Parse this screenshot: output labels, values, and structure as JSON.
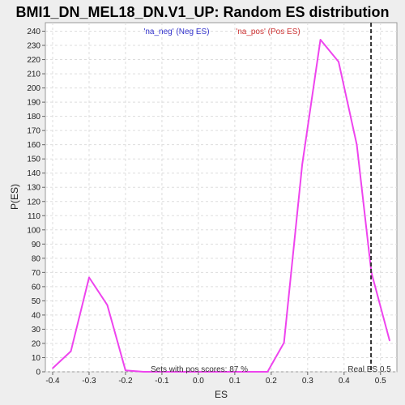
{
  "chart_data": {
    "type": "line",
    "title": "BMI1_DN_MEL18_DN.V1_UP: Random ES distribution",
    "xlabel": "ES",
    "ylabel": "P(ES)",
    "xlim": [
      -0.42,
      0.545
    ],
    "ylim": [
      0,
      246
    ],
    "xticks": [
      -0.4,
      -0.3,
      -0.2,
      -0.1,
      0.0,
      0.1,
      0.2,
      0.3,
      0.4,
      0.5
    ],
    "xtick_labels": [
      "-0.4",
      "-0.3",
      "-0.2",
      "-0.1",
      "0.0",
      "0.1",
      "0.2",
      "0.3",
      "0.4",
      "0.5"
    ],
    "yticks": [
      0,
      10,
      20,
      30,
      40,
      50,
      60,
      70,
      80,
      90,
      100,
      110,
      120,
      130,
      140,
      150,
      160,
      170,
      180,
      190,
      200,
      210,
      220,
      230,
      240
    ],
    "grid": true,
    "legend": {
      "neg_label": "'na_neg' (Neg ES)",
      "pos_label": "'na_pos' (Pos ES)"
    },
    "series": [
      {
        "color": "#ee44ee",
        "x": [
          -0.4,
          -0.35,
          -0.3,
          -0.25,
          -0.2,
          -0.15,
          -0.1,
          -0.05,
          0.0,
          0.05,
          0.1,
          0.14,
          0.19,
          0.235,
          0.285,
          0.335,
          0.385,
          0.435,
          0.475,
          0.525
        ],
        "y": [
          2.5,
          14.5,
          66.5,
          47,
          1,
          0,
          0,
          0,
          0,
          0,
          0,
          0,
          0,
          20.5,
          146,
          234,
          218.5,
          160,
          70,
          22
        ]
      }
    ],
    "real_es": {
      "x": 0.474,
      "label": "Real ES 0.5"
    },
    "annotation": "Sets with pos scores: 87 %"
  }
}
